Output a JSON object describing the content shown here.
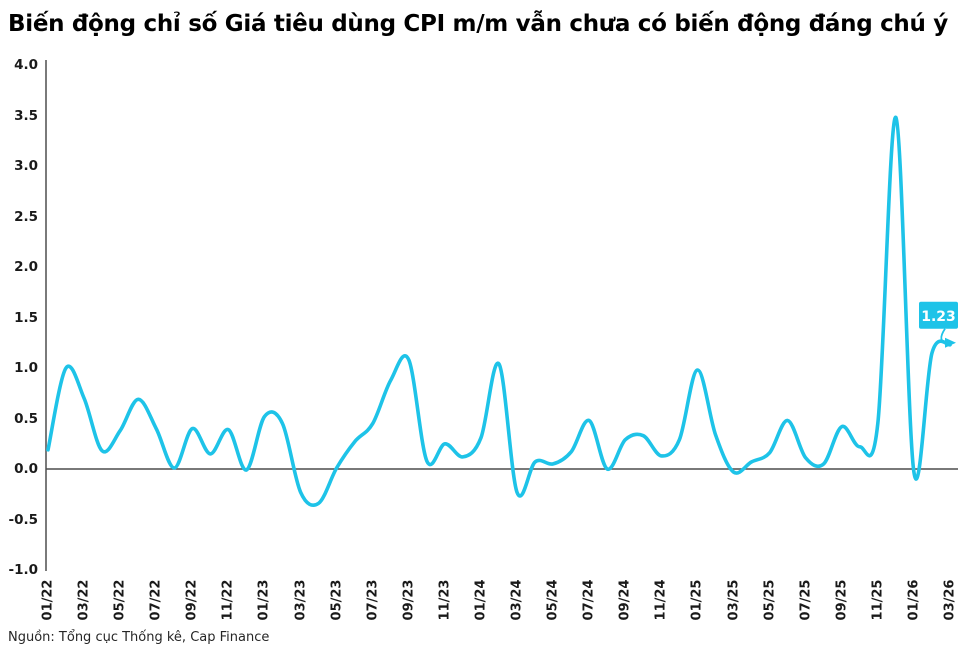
{
  "title": "Biến động chỉ số Giá tiêu dùng CPI m/m vẫn chưa có biến động đáng chú ý",
  "source": "Nguồn: Tổng cục Thống kê, Cap Finance",
  "colors": {
    "line": "#1ec3e8",
    "callout_bg": "#1ec3e8",
    "callout_text": "#ffffff",
    "axis_y": "#7a7a7a",
    "zero_line": "#4d4d4d",
    "tick_text": "#1a1a1a",
    "title_text": "#000000"
  },
  "chart_data": {
    "type": "line",
    "series_name": "CPI m/m (%)",
    "title": "Biến động chỉ số Giá tiêu dùng CPI m/m vẫn chưa có biến động đáng chú ý",
    "xlabel": "",
    "ylabel": "",
    "ylim": [
      -1.0,
      4.0
    ],
    "grid": "off",
    "legend": "none",
    "categories": [
      "01/22",
      "02/22",
      "03/22",
      "04/22",
      "05/22",
      "06/22",
      "07/22",
      "08/22",
      "09/22",
      "10/22",
      "11/22",
      "12/22",
      "01/23",
      "02/23",
      "03/23",
      "04/23",
      "05/23",
      "06/23",
      "07/23",
      "08/23",
      "09/23",
      "10/23",
      "11/23",
      "12/23",
      "01/24",
      "02/24",
      "03/24",
      "04/24",
      "05/24",
      "06/24",
      "07/24",
      "08/24",
      "09/24",
      "10/24",
      "11/24",
      "12/24",
      "01/25",
      "02/25",
      "03/25",
      "04/25",
      "05/25",
      "06/25",
      "07/25",
      "08/25",
      "09/25",
      "10/25",
      "11/25",
      "12/25",
      "01/26",
      "02/26",
      "03/26"
    ],
    "values": [
      0.19,
      1.0,
      0.7,
      0.18,
      0.38,
      0.69,
      0.4,
      0.01,
      0.4,
      0.15,
      0.39,
      -0.01,
      0.52,
      0.45,
      -0.23,
      -0.34,
      0.01,
      0.27,
      0.45,
      0.88,
      1.08,
      0.08,
      0.25,
      0.12,
      0.31,
      1.04,
      -0.23,
      0.07,
      0.05,
      0.17,
      0.48,
      0.0,
      0.29,
      0.33,
      0.13,
      0.29,
      0.98,
      0.34,
      -0.03,
      0.07,
      0.16,
      0.48,
      0.11,
      0.05,
      0.42,
      0.22,
      0.45,
      3.48,
      -0.03,
      1.15,
      1.23
    ],
    "x_tick_labels": [
      "01/22",
      "03/22",
      "05/22",
      "07/22",
      "09/22",
      "11/22",
      "01/23",
      "03/23",
      "05/23",
      "07/23",
      "09/23",
      "11/23",
      "01/24",
      "03/24",
      "05/24",
      "07/24",
      "09/24",
      "11/24",
      "01/25",
      "03/25",
      "05/25",
      "07/25",
      "09/25",
      "11/25",
      "01/26",
      "03/26"
    ],
    "y_ticks": [
      "4.0",
      "3.5",
      "3.0",
      "2.5",
      "2.0",
      "1.5",
      "1.0",
      "0.5",
      "0.0",
      "-0.5",
      "-1.0"
    ],
    "annotation": {
      "text": "1.23",
      "category": "03/26",
      "value": 1.23
    }
  }
}
